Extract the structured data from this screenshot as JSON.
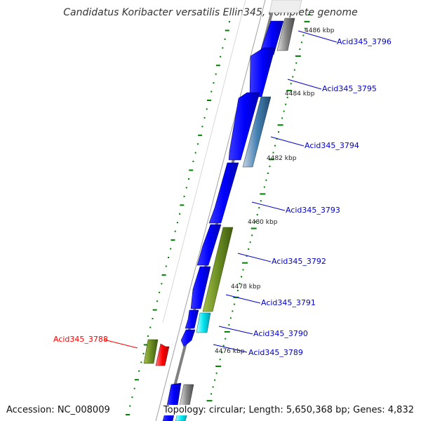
{
  "title": "Candidatus Koribacter versatilis Ellin345, complete genome",
  "accession_text": "Accession: NC_008009",
  "topology_text": "Topology: circular; Length: 5,650,368 bp; Genes: 4,832",
  "kbp_labels": [
    "4486 kbp",
    "4484 kbp",
    "4482 kbp",
    "4480 kbp",
    "4478 kbp",
    "4476 kbp"
  ],
  "gene_labels": [
    {
      "text": "Acid345_3796",
      "color": "#0000cc"
    },
    {
      "text": "Acid345_3795",
      "color": "#0000cc"
    },
    {
      "text": "Acid345_3794",
      "color": "#0000cc"
    },
    {
      "text": "Acid345_3793",
      "color": "#0000cc"
    },
    {
      "text": "Acid345_3792",
      "color": "#0000cc"
    },
    {
      "text": "Acid345_3791",
      "color": "#0000cc"
    },
    {
      "text": "Acid345_3790",
      "color": "#0000cc"
    },
    {
      "text": "Acid345_3789",
      "color": "#0000cc"
    },
    {
      "text": "Acid345_3788",
      "color": "#ff0000"
    }
  ],
  "colors": {
    "cds_forward": "#0000ff",
    "cds_olive": "#6b8e23",
    "cds_cyan": "#00ffff",
    "cds_steel": "#4682b4",
    "cds_gray": "#808080",
    "cds_red": "#ff0000",
    "backbone": "#808080",
    "gc_dots": "#008000",
    "label_blue": "#0000cc",
    "label_red": "#ff0000"
  }
}
